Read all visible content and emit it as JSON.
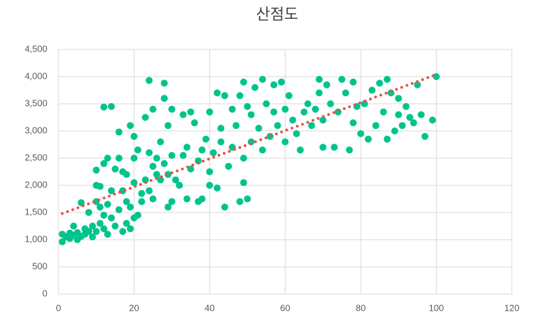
{
  "chart_data": {
    "type": "scatter",
    "title": "산점도",
    "x": [
      1,
      1,
      2,
      3,
      3,
      4,
      4,
      5,
      5,
      6,
      6,
      7,
      7,
      8,
      8,
      9,
      9,
      10,
      10,
      10,
      10,
      11,
      11,
      11,
      12,
      12,
      12,
      12,
      13,
      13,
      13,
      14,
      14,
      14,
      15,
      15,
      16,
      16,
      16,
      17,
      17,
      17,
      18,
      18,
      18,
      19,
      19,
      19,
      20,
      20,
      20,
      20,
      21,
      21,
      22,
      22,
      23,
      23,
      24,
      24,
      24,
      25,
      25,
      25,
      26,
      26,
      27,
      27,
      28,
      28,
      28,
      29,
      29,
      29,
      30,
      30,
      30,
      31,
      32,
      33,
      33,
      34,
      34,
      35,
      35,
      36,
      37,
      37,
      38,
      38,
      39,
      40,
      40,
      40,
      41,
      42,
      42,
      43,
      43,
      44,
      44,
      45,
      46,
      46,
      47,
      48,
      48,
      49,
      49,
      49,
      50,
      50,
      51,
      51,
      52,
      53,
      54,
      54,
      55,
      56,
      57,
      57,
      58,
      59,
      60,
      60,
      61,
      62,
      63,
      64,
      65,
      66,
      67,
      68,
      69,
      69,
      70,
      70,
      71,
      72,
      73,
      74,
      75,
      76,
      77,
      78,
      78,
      79,
      80,
      81,
      82,
      83,
      84,
      85,
      86,
      87,
      87,
      88,
      89,
      90,
      90,
      91,
      92,
      93,
      94,
      95,
      96,
      97,
      99,
      100
    ],
    "values": [
      960,
      1100,
      1050,
      1120,
      1020,
      1250,
      1080,
      1000,
      1130,
      1680,
      1060,
      1100,
      1200,
      1500,
      1150,
      1250,
      1050,
      2000,
      1150,
      1700,
      2280,
      1300,
      1600,
      1980,
      3440,
      1450,
      2400,
      1200,
      1100,
      1650,
      2500,
      3450,
      1900,
      1400,
      2300,
      1250,
      2980,
      1550,
      2500,
      1150,
      1900,
      2250,
      1300,
      1700,
      2200,
      3100,
      1200,
      1600,
      2900,
      1400,
      2050,
      2500,
      1450,
      2650,
      1700,
      1850,
      2100,
      3250,
      3930,
      2600,
      1900,
      2350,
      3400,
      1750,
      2500,
      2200,
      2800,
      2100,
      3880,
      3600,
      2400,
      1600,
      3100,
      2200,
      3400,
      1700,
      2550,
      2100,
      2000,
      3300,
      2550,
      2700,
      1750,
      3350,
      2300,
      3150,
      1700,
      2450,
      2650,
      1750,
      2850,
      3350,
      2250,
      2000,
      2600,
      3700,
      1950,
      3050,
      2800,
      3650,
      1600,
      2350,
      3400,
      2700,
      3100,
      3650,
      1700,
      3900,
      2050,
      2500,
      3450,
      1750,
      3300,
      2800,
      3800,
      3050,
      3950,
      2650,
      3500,
      2900,
      3850,
      3350,
      3100,
      3900,
      2800,
      3400,
      3650,
      3200,
      2950,
      2650,
      3350,
      3500,
      3100,
      3400,
      3950,
      3700,
      2700,
      3200,
      3850,
      3500,
      2700,
      3350,
      3950,
      3700,
      2650,
      3900,
      3150,
      3450,
      2950,
      3500,
      2850,
      3750,
      3100,
      3880,
      3350,
      2850,
      3950,
      3700,
      3000,
      3600,
      3300,
      3100,
      3450,
      3250,
      3150,
      3850,
      3300,
      2900,
      3200,
      4000
    ],
    "color": "#00c48c",
    "trendline": {
      "x": [
        1,
        100
      ],
      "y": [
        1480,
        4040
      ],
      "color": "#e8534a"
    },
    "xlim": [
      0,
      120
    ],
    "xticks": [
      0,
      20,
      40,
      60,
      80,
      100,
      120
    ],
    "ylim": [
      0,
      4500
    ],
    "yticks": [
      0,
      500,
      {
        "value": 1000,
        "label": "1,000"
      },
      {
        "value": 1500,
        "label": "1,500"
      },
      {
        "value": 2000,
        "label": "2,000"
      },
      {
        "value": 2500,
        "label": "2,500"
      },
      {
        "value": 3000,
        "label": "3,000"
      },
      {
        "value": 3500,
        "label": "3,500"
      },
      {
        "value": 4000,
        "label": "4,000"
      },
      {
        "value": 4500,
        "label": "4,500"
      }
    ],
    "grid": true
  }
}
